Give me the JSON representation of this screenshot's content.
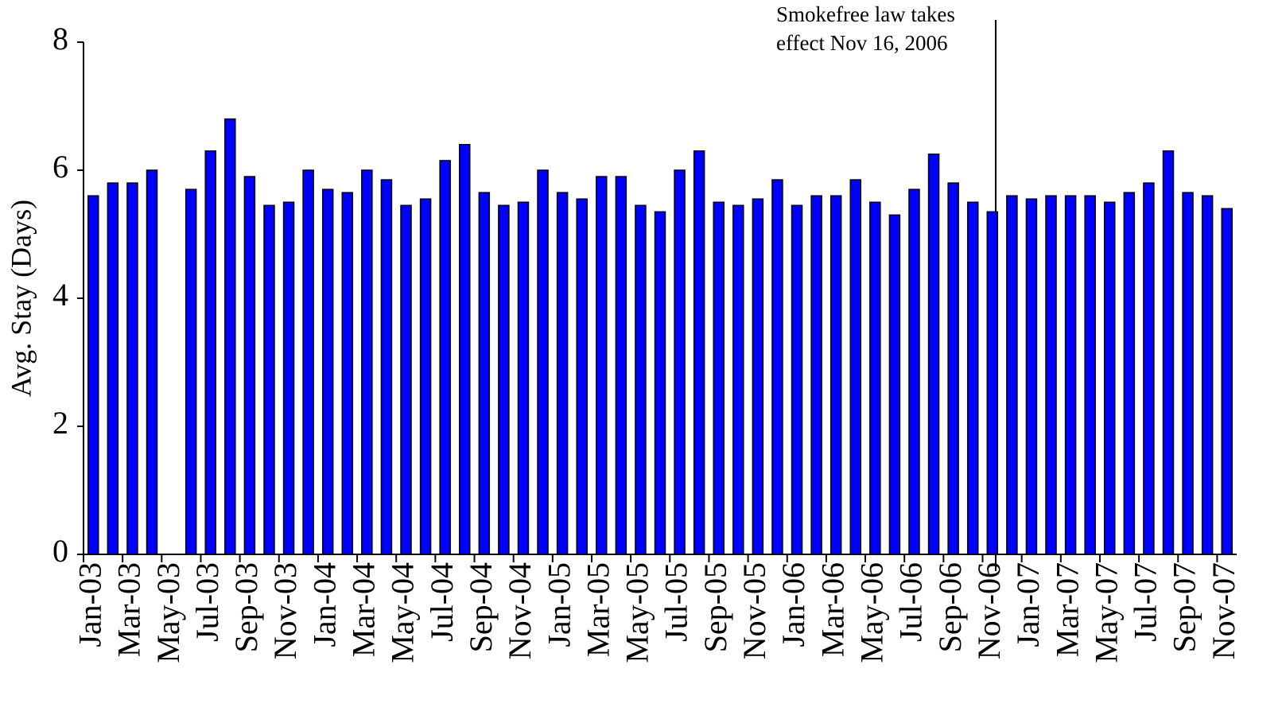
{
  "chart_data": {
    "type": "bar",
    "y_label": "Avg. Stay (Days)",
    "annotation": [
      "Smokefree law takes",
      "effect Nov 16, 2006"
    ],
    "categories": [
      "Jan-03",
      null,
      "Mar-03",
      null,
      "May-03",
      null,
      "Jul-03",
      null,
      "Sep-03",
      null,
      "Nov-03",
      null,
      "Jan-04",
      null,
      "Mar-04",
      null,
      "May-04",
      null,
      "Jul-04",
      null,
      "Sep-04",
      null,
      "Nov-04",
      null,
      "Jan-05",
      null,
      "Mar-05",
      null,
      "May-05",
      null,
      "Jul-05",
      null,
      "Sep-05",
      null,
      "Nov-05",
      null,
      "Jan-06",
      null,
      "Mar-06",
      null,
      "May-06",
      null,
      "Jul-06",
      null,
      "Sep-06",
      null,
      "Nov-06",
      null,
      "Jan-07",
      null,
      "Mar-07",
      null,
      "May-07",
      null,
      "Jul-07",
      null,
      "Sep-07",
      null,
      "Nov-07"
    ],
    "values": [
      5.6,
      5.8,
      5.8,
      6.0,
      null,
      5.7,
      6.3,
      6.8,
      5.9,
      5.45,
      5.5,
      6.0,
      5.7,
      5.65,
      6.0,
      5.85,
      5.45,
      5.55,
      6.15,
      6.4,
      5.65,
      5.45,
      5.5,
      6.0,
      5.65,
      5.55,
      5.9,
      5.9,
      5.45,
      5.35,
      6.0,
      6.3,
      5.5,
      5.45,
      5.55,
      5.85,
      5.45,
      5.6,
      5.6,
      5.85,
      5.5,
      5.3,
      5.7,
      6.25,
      5.8,
      5.5,
      5.35,
      5.6,
      5.55,
      5.6,
      5.6,
      5.6,
      5.5,
      5.65,
      5.8,
      6.3,
      5.65,
      5.6,
      5.4
    ],
    "color": "#0000ff",
    "ylim": [
      0,
      8
    ],
    "yticks": [
      0,
      2,
      4,
      6,
      8
    ],
    "grid": false
  }
}
